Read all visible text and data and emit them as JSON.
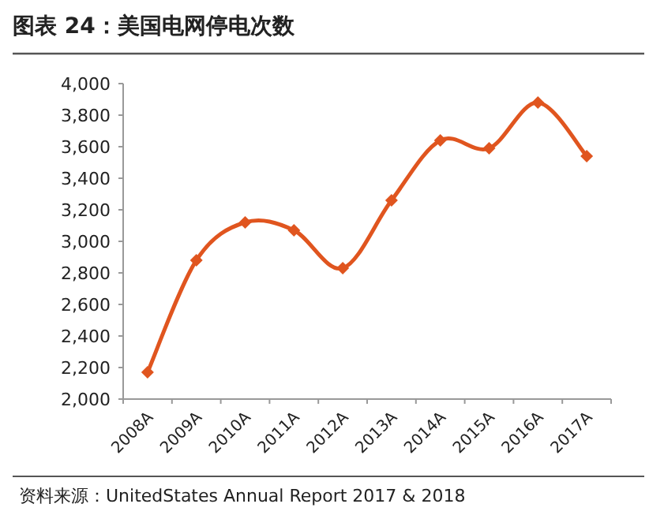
{
  "chart_data": {
    "type": "line",
    "title": "图表 24：美国电网停电次数",
    "categories": [
      "2008A",
      "2009A",
      "2010A",
      "2011A",
      "2012A",
      "2013A",
      "2014A",
      "2015A",
      "2016A",
      "2017A"
    ],
    "series": [
      {
        "color": "#e0551f",
        "values": [
          2170,
          2880,
          3120,
          3070,
          2830,
          3260,
          3640,
          3590,
          3880,
          3540
        ]
      }
    ],
    "ylim": [
      2000,
      4000
    ],
    "yticks": [
      {
        "value": 2000,
        "label": "2,000"
      },
      {
        "value": 2200,
        "label": "2,200"
      },
      {
        "value": 2400,
        "label": "2,400"
      },
      {
        "value": 2600,
        "label": "2,600"
      },
      {
        "value": 2800,
        "label": "2,800"
      },
      {
        "value": 3000,
        "label": "3,000"
      },
      {
        "value": 3200,
        "label": "3,200"
      },
      {
        "value": 3400,
        "label": "3,400"
      },
      {
        "value": 3600,
        "label": "3,600"
      },
      {
        "value": 3800,
        "label": "3,800"
      },
      {
        "value": 4000,
        "label": "4,000"
      }
    ],
    "marker": "diamond",
    "annotations": [
      "资料来源：UnitedStates Annual Report 2017 & 2018"
    ]
  }
}
